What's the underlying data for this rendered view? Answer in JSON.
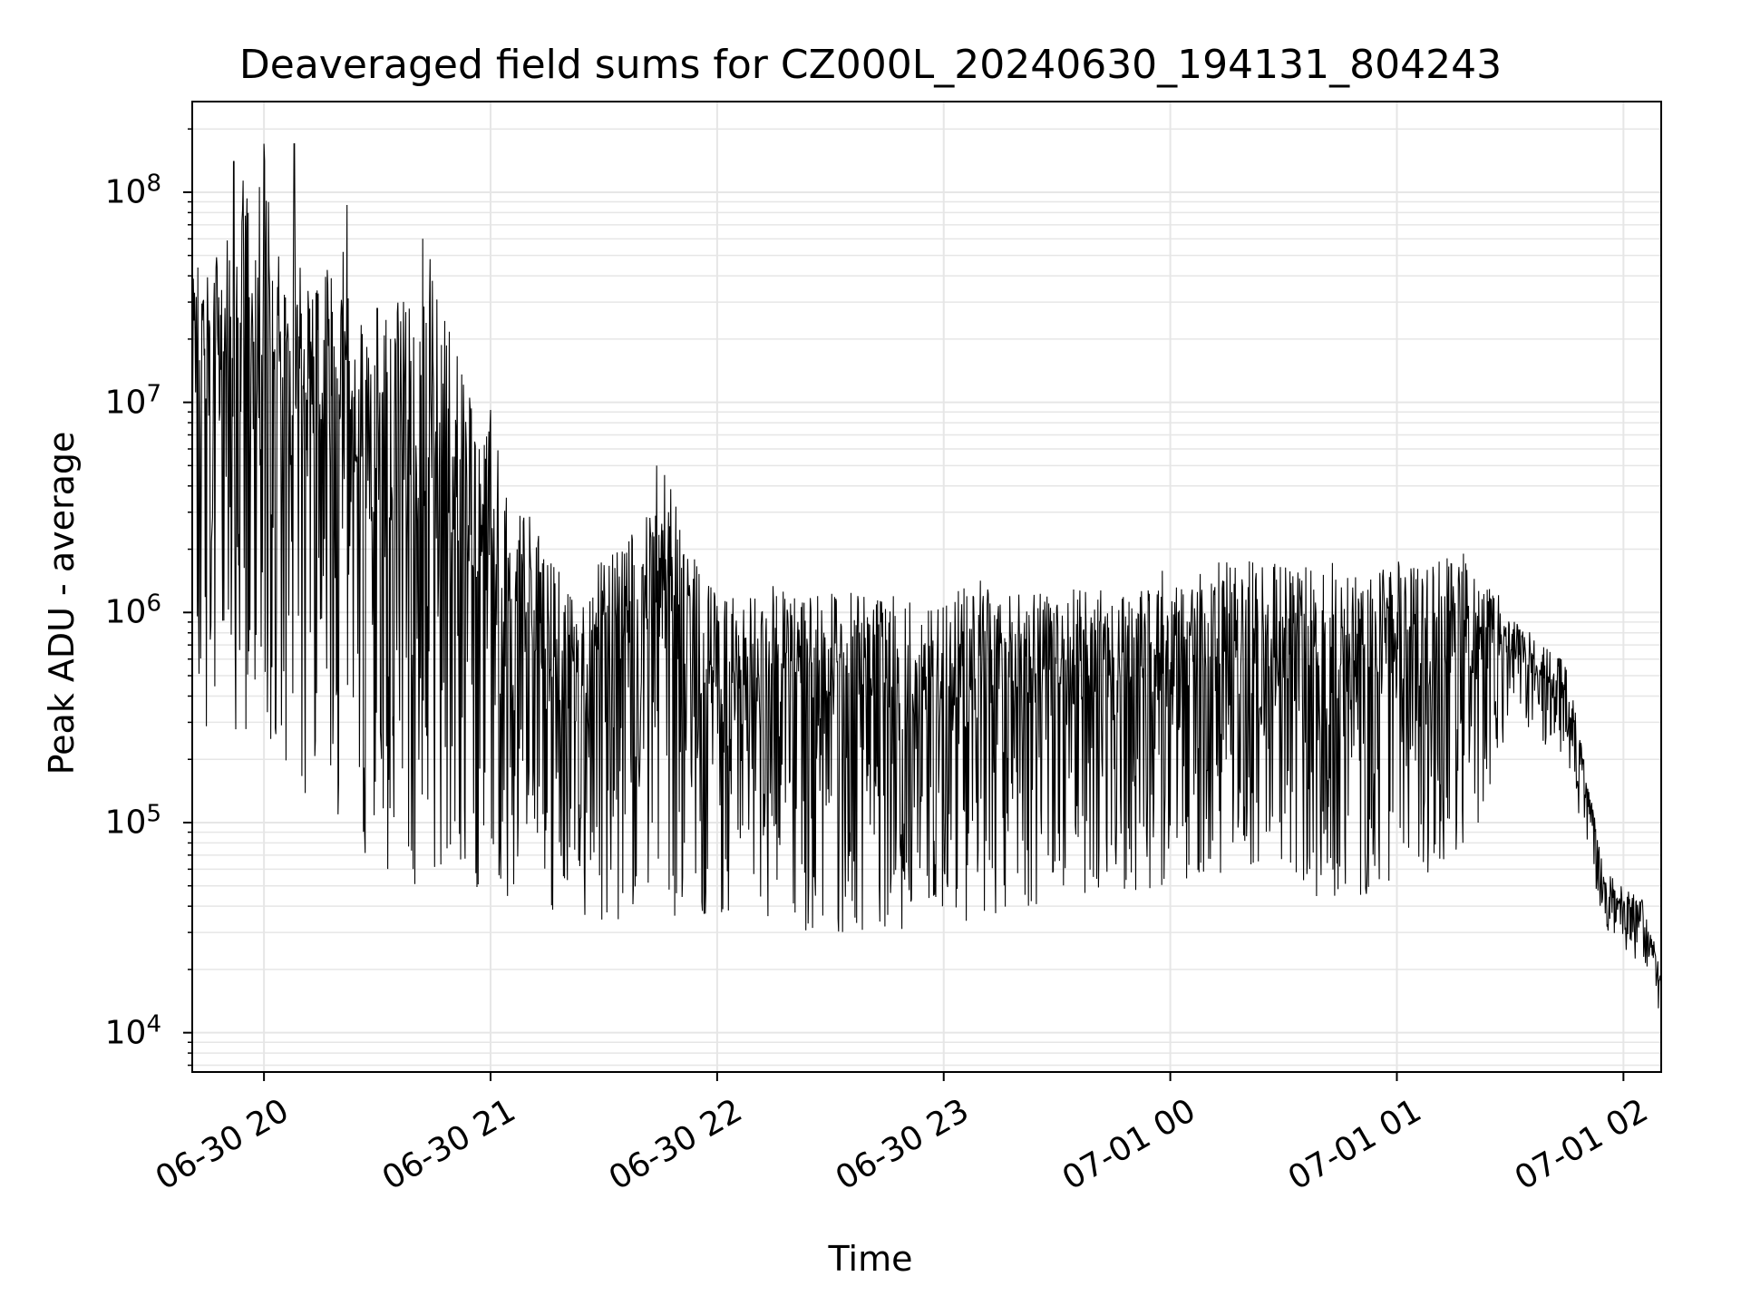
{
  "chart_data": {
    "type": "line",
    "title": "Deaveraged field sums for CZ000L_20240630_194131_804243",
    "xlabel": "Time",
    "ylabel": "Peak ADU - average",
    "yscale": "log",
    "xlim": [
      "2024-06-30 19:41",
      "2024-07-01 02:10"
    ],
    "ylim": [
      6500,
      270000000
    ],
    "x_ticks": [
      "06-30 20",
      "06-30 21",
      "06-30 22",
      "06-30 23",
      "07-01 00",
      "07-01 01",
      "07-01 02"
    ],
    "y_ticks": [
      {
        "base": "10",
        "exp": "4"
      },
      {
        "base": "10",
        "exp": "5"
      },
      {
        "base": "10",
        "exp": "6"
      },
      {
        "base": "10",
        "exp": "7"
      },
      {
        "base": "10",
        "exp": "8"
      }
    ],
    "grid": true,
    "series": [
      {
        "color": "#000000",
        "envelope": [
          {
            "x": "2024-06-30 19:41",
            "low": 300000,
            "high": 60000000
          },
          {
            "x": "2024-06-30 20:00",
            "low": 220000,
            "high": 160000000
          },
          {
            "x": "2024-06-30 20:10",
            "low": 130000,
            "high": 60000000
          },
          {
            "x": "2024-06-30 20:20",
            "low": 75000,
            "high": 50000000
          },
          {
            "x": "2024-06-30 20:30",
            "low": 55000,
            "high": 30000000
          },
          {
            "x": "2024-06-30 20:45",
            "low": 45000,
            "high": 50000000
          },
          {
            "x": "2024-06-30 21:00",
            "low": 45000,
            "high": 9000000
          },
          {
            "x": "2024-06-30 21:20",
            "low": 35000,
            "high": 1500000
          },
          {
            "x": "2024-06-30 21:45",
            "low": 30000,
            "high": 5000000
          },
          {
            "x": "2024-06-30 22:00",
            "low": 32000,
            "high": 1400000
          },
          {
            "x": "2024-06-30 22:30",
            "low": 30000,
            "high": 1500000
          },
          {
            "x": "2024-06-30 23:00",
            "low": 28000,
            "high": 1400000
          },
          {
            "x": "2024-06-30 23:30",
            "low": 40000,
            "high": 1500000
          },
          {
            "x": "2024-07-01 00:00",
            "low": 50000,
            "high": 1600000
          },
          {
            "x": "2024-07-01 00:20",
            "low": 60000,
            "high": 2200000
          },
          {
            "x": "2024-07-01 00:45",
            "low": 40000,
            "high": 1700000
          },
          {
            "x": "2024-07-01 01:00",
            "low": 50000,
            "high": 2100000
          },
          {
            "x": "2024-07-01 01:20",
            "low": 70000,
            "high": 2000000
          },
          {
            "x": "2024-07-01 01:30",
            "low": 300000,
            "high": 1000000
          },
          {
            "x": "2024-07-01 01:45",
            "low": 200000,
            "high": 600000
          },
          {
            "x": "2024-07-01 01:55",
            "low": 30000,
            "high": 60000
          },
          {
            "x": "2024-07-01 02:05",
            "low": 20000,
            "high": 45000
          },
          {
            "x": "2024-07-01 02:10",
            "low": 11000,
            "high": 20000
          }
        ],
        "spikes": [
          {
            "x": "2024-06-30 19:52",
            "y": 140000000
          },
          {
            "x": "2024-06-30 20:00",
            "y": 170000000
          },
          {
            "x": "2024-06-30 20:08",
            "y": 170000000
          },
          {
            "x": "2024-06-30 20:21",
            "y": 52000000
          },
          {
            "x": "2024-06-30 20:22",
            "y": 87000000
          },
          {
            "x": "2024-06-30 20:30",
            "y": 28000000
          },
          {
            "x": "2024-06-30 20:42",
            "y": 60000000
          },
          {
            "x": "2024-06-30 20:44",
            "y": 48000000
          },
          {
            "x": "2024-06-30 20:56",
            "y": 6200000
          },
          {
            "x": "2024-06-30 21:00",
            "y": 9200000
          },
          {
            "x": "2024-06-30 21:44",
            "y": 5000000
          }
        ]
      }
    ]
  }
}
